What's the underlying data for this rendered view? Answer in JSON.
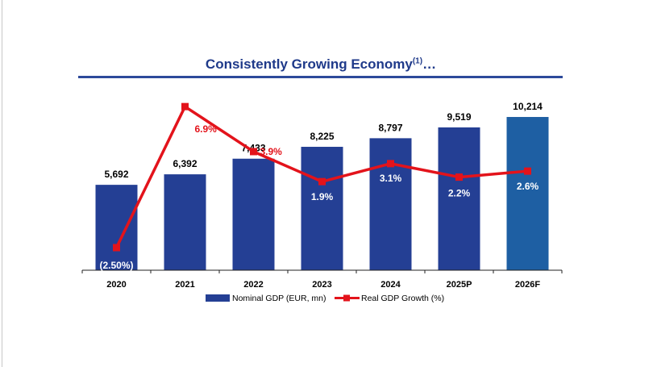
{
  "chart_data": {
    "type": "bar+line",
    "title": "Consistently Growing Economy",
    "title_superscript": "(1)",
    "title_suffix": "…",
    "categories": [
      "2020",
      "2021",
      "2022",
      "2023",
      "2024",
      "2025P",
      "2026F"
    ],
    "series": [
      {
        "name": "Nominal GDP (EUR, mn)",
        "type": "bar",
        "values": [
          5692,
          6392,
          7433,
          8225,
          8797,
          9519,
          10214
        ],
        "labels": [
          "5,692",
          "6,392",
          "7,433",
          "8,225",
          "8,797",
          "9,519",
          "10,214"
        ],
        "color": "#243f94",
        "last_color": "#1e5fa3"
      },
      {
        "name": "Real GDP Growth (%)",
        "type": "line",
        "values": [
          -2.5,
          6.9,
          3.9,
          1.9,
          3.1,
          2.2,
          2.6
        ],
        "labels": [
          "(2.50%)",
          "6.9%",
          "3.9%",
          "1.9%",
          "3.1%",
          "2.2%",
          "2.6%"
        ],
        "color": "#e3131b"
      }
    ],
    "legend": "bottom",
    "grid": false
  }
}
